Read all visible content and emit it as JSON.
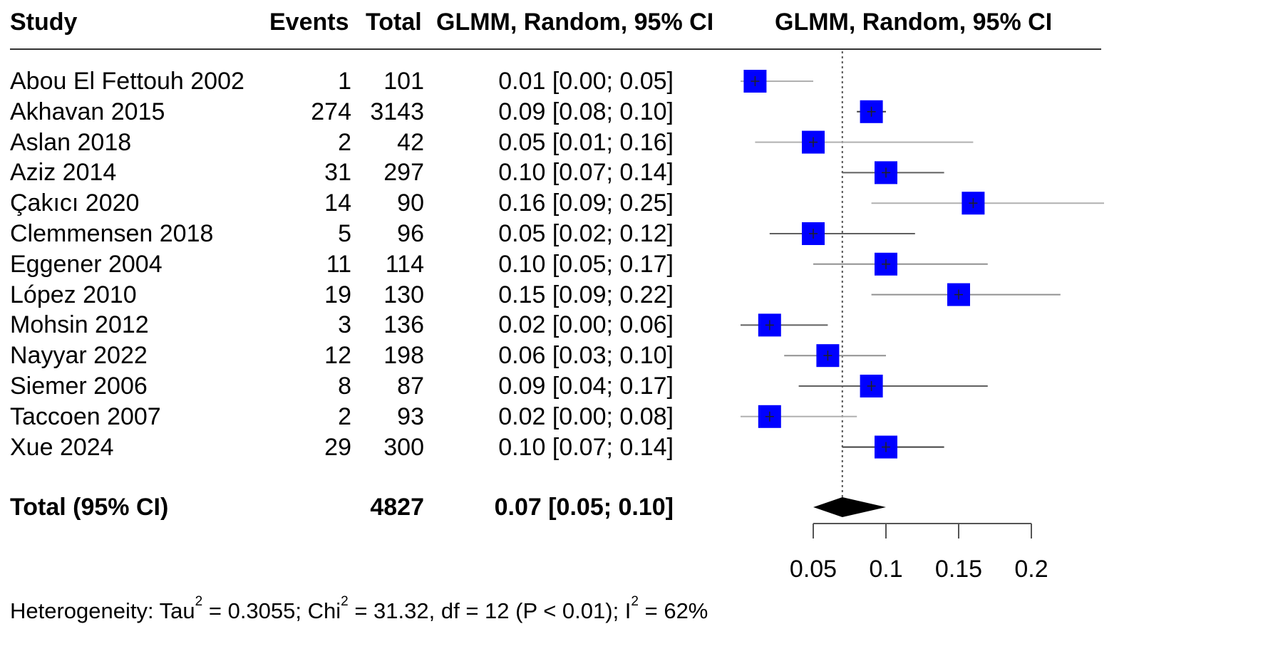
{
  "headers": {
    "study": "Study",
    "events": "Events",
    "total": "Total",
    "ci_text": "GLMM, Random, 95% CI",
    "ci_plot": "GLMM, Random, 95% CI"
  },
  "studies": [
    {
      "name": "Abou El Fettouh 2002",
      "events": "1",
      "total": "101",
      "ci_text": "0.01 [0.00; 0.05]"
    },
    {
      "name": "Akhavan 2015",
      "events": "274",
      "total": "3143",
      "ci_text": "0.09 [0.08; 0.10]"
    },
    {
      "name": "Aslan 2018",
      "events": "2",
      "total": "42",
      "ci_text": "0.05 [0.01; 0.16]"
    },
    {
      "name": "Aziz 2014",
      "events": "31",
      "total": "297",
      "ci_text": "0.10 [0.07; 0.14]"
    },
    {
      "name": "Çakıcı 2020",
      "events": "14",
      "total": "90",
      "ci_text": "0.16 [0.09; 0.25]"
    },
    {
      "name": "Clemmensen 2018",
      "events": "5",
      "total": "96",
      "ci_text": "0.05 [0.02; 0.12]"
    },
    {
      "name": "Eggener 2004",
      "events": "11",
      "total": "114",
      "ci_text": "0.10 [0.05; 0.17]"
    },
    {
      "name": "López 2010",
      "events": "19",
      "total": "130",
      "ci_text": "0.15 [0.09; 0.22]"
    },
    {
      "name": "Mohsin 2012",
      "events": "3",
      "total": "136",
      "ci_text": "0.02 [0.00; 0.06]"
    },
    {
      "name": "Nayyar 2022",
      "events": "12",
      "total": "198",
      "ci_text": "0.06 [0.03; 0.10]"
    },
    {
      "name": "Siemer 2006",
      "events": "8",
      "total": "87",
      "ci_text": "0.09 [0.04; 0.17]"
    },
    {
      "name": "Taccoen 2007",
      "events": "2",
      "total": "93",
      "ci_text": "0.02 [0.00; 0.08]"
    },
    {
      "name": "Xue 2024",
      "events": "29",
      "total": "300",
      "ci_text": "0.10 [0.07; 0.14]"
    }
  ],
  "total_row": {
    "label": "Total (95% CI)",
    "total": "4827",
    "ci_text": "0.07 [0.05; 0.10]"
  },
  "heterogeneity": {
    "prefix": "Heterogeneity: Tau",
    "tau2": "= 0.3055; Chi",
    "chi2": "= 31.32, df = 12 (P < 0.01); I",
    "i2": "= 62%",
    "sup": "2"
  },
  "chart_data": {
    "type": "forest",
    "title": "GLMM, Random, 95% CI",
    "xlabel": "",
    "xlim": [
      0.0,
      0.25
    ],
    "xticks": [
      0.05,
      0.1,
      0.15,
      0.2
    ],
    "xtick_labels": [
      "0.05",
      "0.1",
      "0.15",
      "0.2"
    ],
    "reference_line": 0.07,
    "square_color": "#0000ff",
    "points": [
      {
        "study": "Abou El Fettouh 2002",
        "est": 0.01,
        "lo": 0.0,
        "hi": 0.05,
        "ci_color": "#b0b0b0"
      },
      {
        "study": "Akhavan 2015",
        "est": 0.09,
        "lo": 0.08,
        "hi": 0.1,
        "ci_color": "#404040"
      },
      {
        "study": "Aslan 2018",
        "est": 0.05,
        "lo": 0.01,
        "hi": 0.16,
        "ci_color": "#b0b0b0"
      },
      {
        "study": "Aziz 2014",
        "est": 0.1,
        "lo": 0.07,
        "hi": 0.14,
        "ci_color": "#606060"
      },
      {
        "study": "Çakıcı 2020",
        "est": 0.16,
        "lo": 0.09,
        "hi": 0.25,
        "ci_color": "#b0b0b0"
      },
      {
        "study": "Clemmensen 2018",
        "est": 0.05,
        "lo": 0.02,
        "hi": 0.12,
        "ci_color": "#606060"
      },
      {
        "study": "Eggener 2004",
        "est": 0.1,
        "lo": 0.05,
        "hi": 0.17,
        "ci_color": "#909090"
      },
      {
        "study": "López 2010",
        "est": 0.15,
        "lo": 0.09,
        "hi": 0.22,
        "ci_color": "#909090"
      },
      {
        "study": "Mohsin 2012",
        "est": 0.02,
        "lo": 0.0,
        "hi": 0.06,
        "ci_color": "#606060"
      },
      {
        "study": "Nayyar 2022",
        "est": 0.06,
        "lo": 0.03,
        "hi": 0.1,
        "ci_color": "#909090"
      },
      {
        "study": "Siemer 2006",
        "est": 0.09,
        "lo": 0.04,
        "hi": 0.17,
        "ci_color": "#606060"
      },
      {
        "study": "Taccoen 2007",
        "est": 0.02,
        "lo": 0.0,
        "hi": 0.08,
        "ci_color": "#b0b0b0"
      },
      {
        "study": "Xue 2024",
        "est": 0.1,
        "lo": 0.07,
        "hi": 0.14,
        "ci_color": "#404040"
      }
    ],
    "pooled": {
      "est": 0.07,
      "lo": 0.05,
      "hi": 0.1
    }
  }
}
